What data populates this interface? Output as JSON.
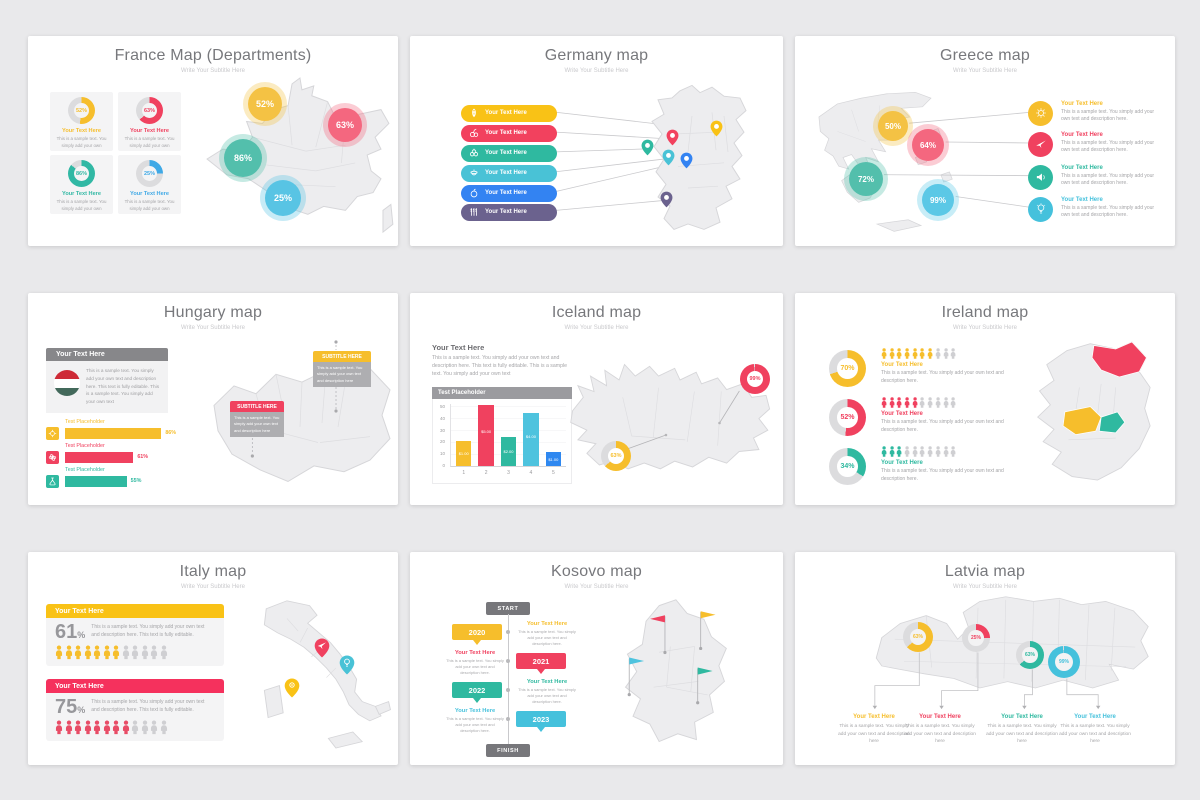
{
  "subtitle": "Write Your Subtitle Here",
  "chart_data": {
    "type": "bar",
    "title": "Test Placeholder",
    "categories": [
      "1",
      "2",
      "3",
      "4",
      "5"
    ],
    "values": [
      21,
      51,
      24,
      44,
      12
    ],
    "bar_labels": [
      "$1.00",
      "$5.00",
      "$2.00",
      "$4.00",
      "$1.00"
    ],
    "colors": [
      "#F6BE2C",
      "#F0415F",
      "#2FB9A0",
      "#4EC3DE",
      "#2F88F0"
    ],
    "yticks": [
      0,
      10,
      20,
      30,
      40,
      50
    ],
    "ylim": [
      0,
      55
    ],
    "xlabel": "",
    "ylabel": ""
  },
  "slides": {
    "france": {
      "title": "France Map (Departments)",
      "cards": [
        {
          "pct": 52,
          "label": "52%",
          "color": "#F6BE2C",
          "inner": "#f4f4f5",
          "title": "Your Text Here",
          "desc": "This is a sample text. You simply add your own"
        },
        {
          "pct": 63,
          "label": "63%",
          "color": "#F0415F",
          "inner": "#f4f4f5",
          "title": "Your Text Here",
          "desc": "This is a sample text. You simply add your own"
        },
        {
          "pct": 86,
          "label": "86%",
          "color": "#31B8A4",
          "inner": "#f4f4f5",
          "title": "Your Text Here",
          "desc": "This is a sample text. You simply add your own"
        },
        {
          "pct": 25,
          "label": "25%",
          "color": "#3FA9E6",
          "inner": "#f4f4f5",
          "title": "Your Text Here",
          "desc": "This is a sample text. You simply add your own"
        }
      ],
      "bubbles": [
        {
          "label": "52%",
          "color": "#F4C244"
        },
        {
          "label": "63%",
          "color": "#F4677F"
        },
        {
          "label": "86%",
          "color": "#53BFAC"
        },
        {
          "label": "25%",
          "color": "#58C4E4"
        }
      ]
    },
    "germany": {
      "title": "Germany map",
      "pills": [
        {
          "label": "Your Text Here",
          "color": "#F9C216",
          "icon": "hop-icon"
        },
        {
          "label": "Your Text Here",
          "color": "#F2415E",
          "icon": "berries-icon"
        },
        {
          "label": "Your Text Here",
          "color": "#2FB9A0",
          "icon": "grapes-icon"
        },
        {
          "label": "Your Text Here",
          "color": "#49C2D6",
          "icon": "acorn-icon"
        },
        {
          "label": "Your Text Here",
          "color": "#3383F2",
          "icon": "apple-icon"
        },
        {
          "label": "Your Text Here",
          "color": "#6B628E",
          "icon": "wheat-icon"
        }
      ],
      "pins": [
        {
          "color": "#F9C216"
        },
        {
          "color": "#F2415E"
        },
        {
          "color": "#2FB9A0"
        },
        {
          "color": "#49C2D6"
        },
        {
          "color": "#3383F2"
        },
        {
          "color": "#6B628E"
        }
      ]
    },
    "greece": {
      "title": "Greece map",
      "bubbles": [
        {
          "label": "50%",
          "color": "#F4C244"
        },
        {
          "label": "64%",
          "color": "#F4677F"
        },
        {
          "label": "72%",
          "color": "#53BFAC"
        },
        {
          "label": "99%",
          "color": "#5BC8E6"
        }
      ],
      "items": [
        {
          "icon": "gear-icon",
          "color": "#F6BE2C",
          "title": "Your Text Here",
          "desc": "This is a sample text. You simply add your own text and description here."
        },
        {
          "icon": "plane-icon",
          "color": "#F0415F",
          "title": "Your Text Here",
          "desc": "This is a sample text. You simply add your own text and description here."
        },
        {
          "icon": "megaphone-icon",
          "color": "#2FB9A0",
          "title": "Your Text Here",
          "desc": "This is a sample text. You simply add your own text and description here."
        },
        {
          "icon": "bulb-icon",
          "color": "#45C1DC",
          "title": "Your Text Here",
          "desc": "This is a sample text. You simply add your own text and description here."
        }
      ]
    },
    "hungary": {
      "title": "Hungary map",
      "panel": {
        "header": "Your Text Here",
        "body": "This is a sample text. You simply add your own text and description here. This text is fully editable. This is a sample text. You simply add your own text"
      },
      "flag": {
        "red": "#CE2B37",
        "white": "#FFFFFF",
        "green": "#43695B"
      },
      "bars": [
        {
          "label": "Test Placeholder",
          "value": "86%",
          "pct": 86,
          "color": "#F6BE2C",
          "icon": "gear-icon"
        },
        {
          "label": "Test Placeholder",
          "value": "61%",
          "pct": 61,
          "color": "#F0415F",
          "icon": "atom-icon"
        },
        {
          "label": "Test Placeholder",
          "value": "55%",
          "pct": 55,
          "color": "#2FB9A0",
          "icon": "flask-icon"
        }
      ],
      "callouts": [
        {
          "title": "SUBTITLE HERE",
          "color": "#F6BE2C",
          "body": "This is a sample text. You simply add your own text and description here"
        },
        {
          "title": "SUBTITLE HERE",
          "color": "#F0415F",
          "body": "This is a sample text. You simply add your own text and description here"
        }
      ]
    },
    "iceland": {
      "title": "Iceland map",
      "heading": "Your Text Here",
      "body": "This is a sample text. You simply add your own text and description here. This text is fully editable. This is a sample text. You simply add your own text",
      "donuts": [
        {
          "pct": 99,
          "label": "99%",
          "color": "#F0415F",
          "inner": "#ffffff"
        },
        {
          "pct": 63,
          "label": "63%",
          "color": "#F6BE2C",
          "inner": "#ffffff"
        }
      ]
    },
    "ireland": {
      "title": "Ireland map",
      "rows": [
        {
          "pct": 70,
          "label": "70%",
          "color": "#F6BE2C",
          "persons": {
            "filled": 7,
            "total": 10,
            "color": "#F6BE2C"
          },
          "title": "Your Text Here",
          "desc": "This is a sample text. You simply add your own text and description here."
        },
        {
          "pct": 52,
          "label": "52%",
          "color": "#F0415F",
          "persons": {
            "filled": 5,
            "total": 10,
            "color": "#F0415F"
          },
          "title": "Your Text Here",
          "desc": "This is a sample text. You simply add your own text and description here."
        },
        {
          "pct": 34,
          "label": "34%",
          "color": "#2FB9A0",
          "persons": {
            "filled": 3,
            "total": 10,
            "color": "#2FB9A0"
          },
          "title": "Your Text Here",
          "desc": "This is a sample text. You simply add your own text and description here."
        }
      ],
      "map_regions": [
        {
          "name": "north",
          "color": "#F0415F"
        },
        {
          "name": "west",
          "color": "#F6BE2C"
        },
        {
          "name": "center",
          "color": "#2FB9A0"
        }
      ]
    },
    "italy": {
      "title": "Italy map",
      "cards": [
        {
          "header": "Your Text Here",
          "color": "#F9C216",
          "big": "61",
          "sign": "%",
          "desc": "This is a sample text. You simply add your own text and description here. This text is fully editable.",
          "persons": {
            "filled": 7,
            "total": 12,
            "color": "#F6BE2C"
          }
        },
        {
          "header": "Your Text Here",
          "color": "#F5315D",
          "big": "75",
          "sign": "%",
          "desc": "This is a sample text. You simply add your own text and description here. This text is fully editable.",
          "persons": {
            "filled": 8,
            "total": 12,
            "color": "#E84C66"
          }
        }
      ],
      "pins": [
        {
          "color": "#F0415F",
          "icon": "plane-icon"
        },
        {
          "color": "#49C2D6",
          "icon": "bulb-icon"
        },
        {
          "color": "#F9C216",
          "icon": "gear-icon"
        }
      ]
    },
    "kosovo": {
      "title": "Kosovo map",
      "start": "START",
      "finish": "FINISH",
      "items": [
        {
          "year": "2020",
          "color": "#F6BE2C",
          "title": "Your Text Here",
          "desc": "This is a sample text. You simply add your own text and description here."
        },
        {
          "year": "2021",
          "color": "#F0415F",
          "title": "Your Text Here",
          "desc": "This is a sample text. You simply add your own text and description here."
        },
        {
          "year": "2022",
          "color": "#2FB9A0",
          "title": "Your Text Here",
          "desc": "This is a sample text. You simply add your own text and description here."
        },
        {
          "year": "2023",
          "color": "#45C1DC",
          "title": "Your Text Here",
          "desc": "This is a sample text. You simply add your own text and description here."
        }
      ],
      "flags": [
        {
          "color": "#F0415F"
        },
        {
          "color": "#F6BE2C"
        },
        {
          "color": "#4EC3DE"
        },
        {
          "color": "#2FB9A0"
        }
      ]
    },
    "latvia": {
      "title": "Latvia map",
      "donuts": [
        {
          "pct": 63,
          "label": "63%",
          "color": "#F6BE2C",
          "inner": "#f3f3f4"
        },
        {
          "pct": 25,
          "label": "25%",
          "color": "#F0415F",
          "inner": "#f3f3f4"
        },
        {
          "pct": 63,
          "label": "63%",
          "color": "#2FB9A0",
          "inner": "#f3f3f4"
        },
        {
          "pct": 99,
          "label": "99%",
          "color": "#45C1DC",
          "inner": "#f3f3f4"
        }
      ],
      "columns": [
        {
          "color": "#F6BE2C",
          "title": "Your Text Here",
          "desc": "This is a sample text. You simply add your own text and description here"
        },
        {
          "color": "#F0415F",
          "title": "Your Text Here",
          "desc": "This is a sample text. You simply add your own text and description here"
        },
        {
          "color": "#2FB9A0",
          "title": "Your Text Here",
          "desc": "This is a sample text. You simply add your own text and description here"
        },
        {
          "color": "#45C1DC",
          "title": "Your Text Here",
          "desc": "This is a sample text. You simply add your own text and description here"
        }
      ]
    }
  }
}
